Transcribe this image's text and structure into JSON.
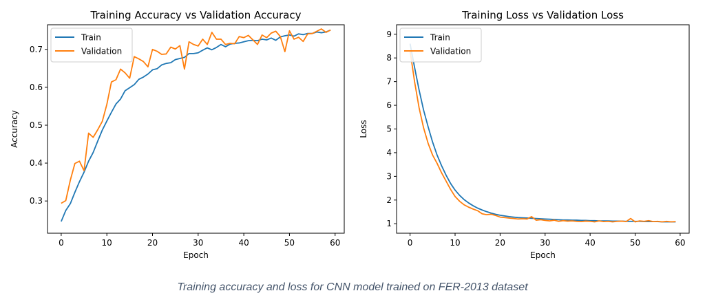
{
  "caption": "Training accuracy and loss for CNN model trained on FER-2013 dataset",
  "colors": {
    "train": "#1f77b4",
    "validation": "#ff7f0e"
  },
  "chart_data": [
    {
      "type": "line",
      "title": "Training Accuracy vs Validation Accuracy",
      "xlabel": "Epoch",
      "ylabel": "Accuracy",
      "xlim": [
        -3,
        62
      ],
      "ylim": [
        0.215,
        0.765
      ],
      "xticks": [
        0,
        10,
        20,
        30,
        40,
        50,
        60
      ],
      "yticks": [
        0.3,
        0.4,
        0.5,
        0.6,
        0.7
      ],
      "ytick_labels": [
        "0.3",
        "0.4",
        "0.5",
        "0.6",
        "0.7"
      ],
      "grid": false,
      "legend": "top-left",
      "series": [
        {
          "name": "Train",
          "values": [
            0.246,
            0.275,
            0.293,
            0.323,
            0.351,
            0.376,
            0.405,
            0.428,
            0.458,
            0.487,
            0.511,
            0.534,
            0.556,
            0.569,
            0.591,
            0.599,
            0.607,
            0.621,
            0.627,
            0.635,
            0.646,
            0.649,
            0.659,
            0.663,
            0.665,
            0.673,
            0.676,
            0.679,
            0.689,
            0.689,
            0.691,
            0.698,
            0.704,
            0.699,
            0.705,
            0.713,
            0.707,
            0.714,
            0.716,
            0.717,
            0.72,
            0.723,
            0.724,
            0.723,
            0.727,
            0.725,
            0.73,
            0.724,
            0.733,
            0.736,
            0.738,
            0.735,
            0.741,
            0.739,
            0.742,
            0.742,
            0.746,
            0.744,
            0.746,
            0.751
          ]
        },
        {
          "name": "Validation",
          "values": [
            0.294,
            0.301,
            0.355,
            0.399,
            0.405,
            0.38,
            0.479,
            0.468,
            0.488,
            0.51,
            0.555,
            0.614,
            0.62,
            0.648,
            0.638,
            0.624,
            0.681,
            0.675,
            0.668,
            0.654,
            0.7,
            0.695,
            0.687,
            0.688,
            0.706,
            0.701,
            0.71,
            0.648,
            0.72,
            0.713,
            0.709,
            0.727,
            0.713,
            0.745,
            0.727,
            0.727,
            0.713,
            0.716,
            0.715,
            0.734,
            0.731,
            0.737,
            0.725,
            0.713,
            0.738,
            0.731,
            0.743,
            0.748,
            0.734,
            0.694,
            0.749,
            0.727,
            0.732,
            0.721,
            0.741,
            0.742,
            0.748,
            0.754,
            0.745,
            0.751
          ]
        }
      ]
    },
    {
      "type": "line",
      "title": "Training Loss vs Validation Loss",
      "xlabel": "Epoch",
      "ylabel": "Loss",
      "xlim": [
        -3,
        62
      ],
      "ylim": [
        0.6,
        9.4
      ],
      "xticks": [
        0,
        10,
        20,
        30,
        40,
        50,
        60
      ],
      "yticks": [
        1,
        2,
        3,
        4,
        5,
        6,
        7,
        8,
        9
      ],
      "ytick_labels": [
        "1",
        "2",
        "3",
        "4",
        "5",
        "6",
        "7",
        "8",
        "9"
      ],
      "grid": false,
      "legend": "top-left",
      "series": [
        {
          "name": "Train",
          "values": [
            8.6,
            7.6,
            6.65,
            5.8,
            5.1,
            4.45,
            3.9,
            3.45,
            3.05,
            2.7,
            2.42,
            2.2,
            2.02,
            1.88,
            1.76,
            1.66,
            1.58,
            1.51,
            1.45,
            1.4,
            1.36,
            1.33,
            1.3,
            1.28,
            1.26,
            1.25,
            1.24,
            1.23,
            1.22,
            1.21,
            1.2,
            1.19,
            1.18,
            1.17,
            1.16,
            1.16,
            1.15,
            1.15,
            1.14,
            1.14,
            1.13,
            1.13,
            1.12,
            1.12,
            1.12,
            1.11,
            1.11,
            1.11,
            1.1,
            1.1,
            1.1,
            1.1,
            1.09,
            1.09,
            1.09,
            1.09,
            1.08,
            1.08,
            1.08,
            1.08
          ]
        },
        {
          "name": "Validation",
          "values": [
            8.3,
            7.0,
            5.9,
            5.05,
            4.4,
            3.9,
            3.55,
            3.15,
            2.8,
            2.45,
            2.15,
            1.95,
            1.8,
            1.7,
            1.62,
            1.55,
            1.42,
            1.38,
            1.4,
            1.35,
            1.28,
            1.26,
            1.24,
            1.22,
            1.2,
            1.21,
            1.2,
            1.3,
            1.15,
            1.17,
            1.14,
            1.12,
            1.15,
            1.1,
            1.13,
            1.11,
            1.12,
            1.1,
            1.09,
            1.11,
            1.1,
            1.08,
            1.12,
            1.09,
            1.1,
            1.08,
            1.1,
            1.11,
            1.09,
            1.22,
            1.08,
            1.12,
            1.1,
            1.13,
            1.09,
            1.1,
            1.08,
            1.1,
            1.08,
            1.09
          ]
        }
      ]
    }
  ]
}
